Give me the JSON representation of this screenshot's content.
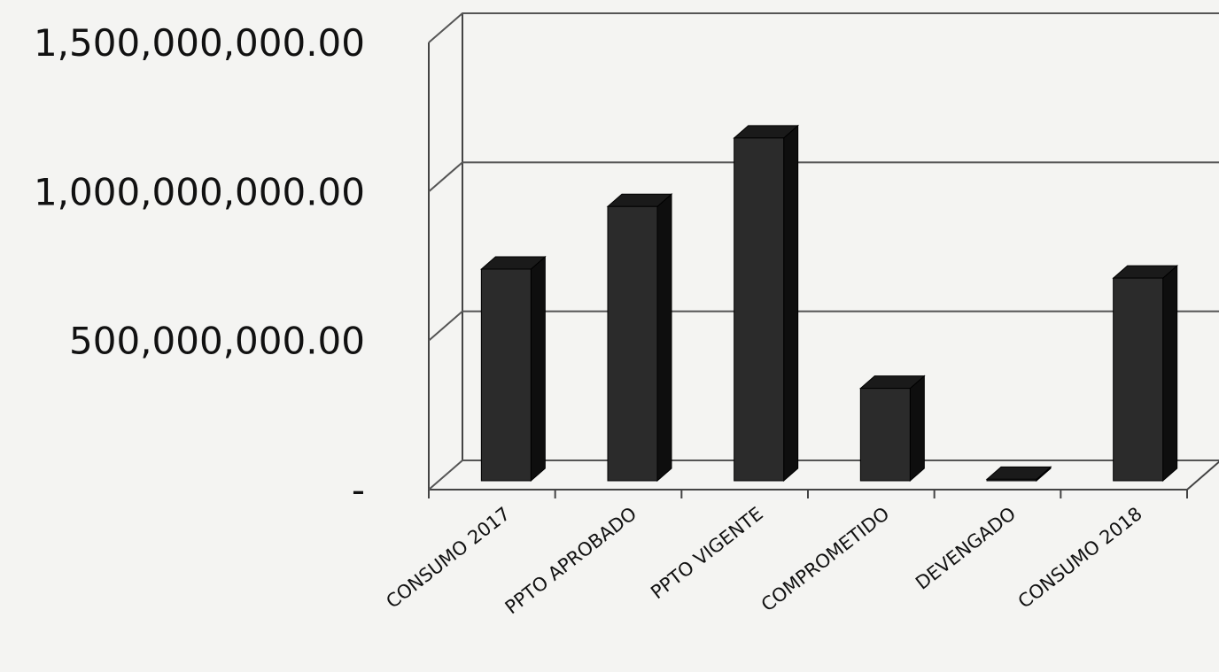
{
  "chart_data": {
    "type": "bar",
    "style": "3d-column",
    "title": "",
    "xlabel": "",
    "ylabel": "",
    "categories": [
      "CONSUMO 2017",
      "PPTO APROBADO",
      "PPTO VIGENTE",
      "COMPROMETIDO",
      "DEVENGADO",
      "CONSUMO 2018"
    ],
    "values": [
      710000000,
      920000000,
      1150000000,
      310000000,
      5000000,
      680000000
    ],
    "ylim": [
      0,
      1500000000
    ],
    "yticks": [
      0,
      500000000,
      1000000000,
      1500000000
    ],
    "ytick_labels": [
      "-",
      "500,000,000.00",
      "1,000,000,000.00",
      "1,500,000,000.00"
    ],
    "grid": true,
    "legend": "none",
    "colors": {
      "bar_front": "#2b2b2b",
      "bar_side": "#0e0e0e",
      "bar_top": "#1a1a1a",
      "grid": "#555555",
      "background": "#f4f4f2"
    }
  }
}
